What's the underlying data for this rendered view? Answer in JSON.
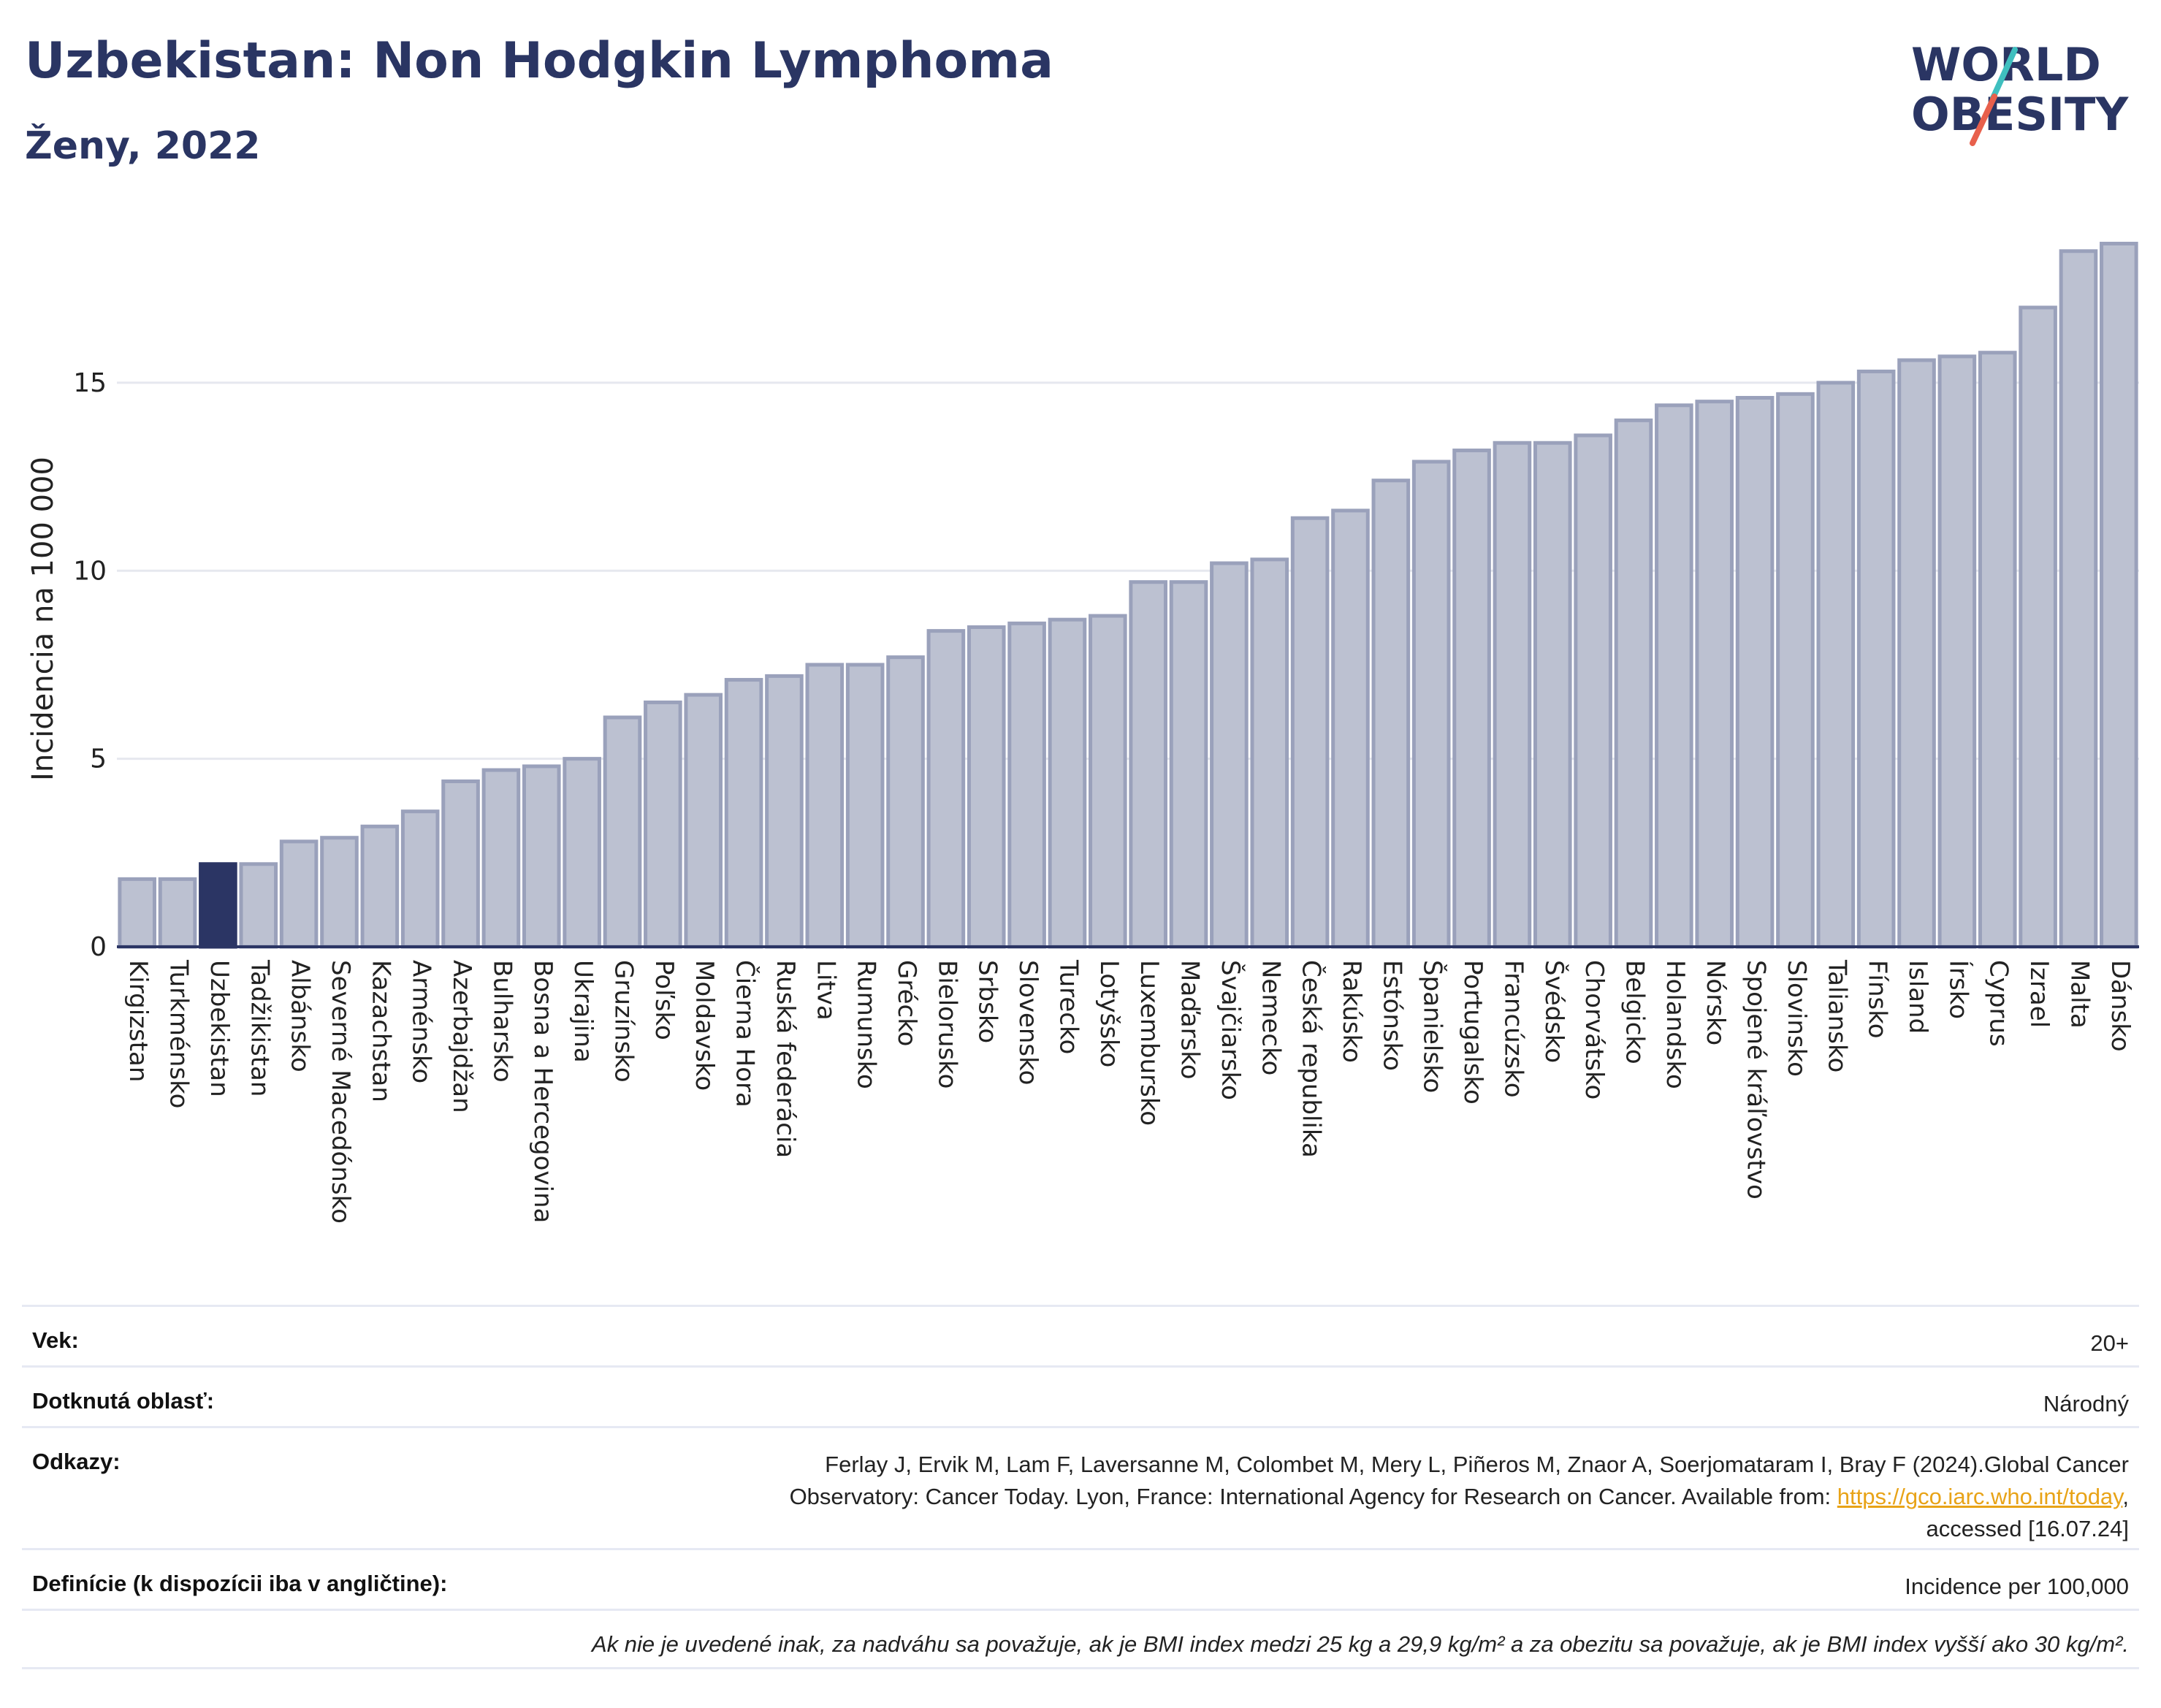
{
  "header": {
    "title": "Uzbekistan: Non Hodgkin Lymphoma",
    "subtitle": "Ženy, 2022"
  },
  "logo": {
    "line1": "WORLD",
    "line2": "OBESITY",
    "colors": {
      "text": "#2a3563",
      "slash_teal": "#3fbfbf",
      "slash_red": "#e8604c"
    }
  },
  "chart_data": {
    "type": "bar",
    "ylabel": "Incidencia na 100 000",
    "ylim": [
      0,
      19
    ],
    "yticks": [
      0,
      5,
      10,
      15
    ],
    "grid": true,
    "highlight": "Uzbekistan",
    "colors": {
      "bar": "#bcc1d1",
      "bar_edge": "#9aa1bb",
      "highlight": "#2b3564",
      "grid": "#e6e8ef"
    },
    "categories": [
      "Kirgizstan",
      "Turkménsko",
      "Uzbekistan",
      "Tadžikistan",
      "Albánsko",
      "Severné Macedónsko",
      "Kazachstan",
      "Arménsko",
      "Azerbajdžan",
      "Bulharsko",
      "Bosna a Hercegovina",
      "Ukrajina",
      "Gruzínsko",
      "Poľsko",
      "Moldavsko",
      "Čierna Hora",
      "Ruská federácia",
      "Litva",
      "Rumunsko",
      "Grécko",
      "Bielorusko",
      "Srbsko",
      "Slovensko",
      "Turecko",
      "Lotyšsko",
      "Luxembursko",
      "Maďarsko",
      "Švajčiarsko",
      "Nemecko",
      "Česká republika",
      "Rakúsko",
      "Estónsko",
      "Španielsko",
      "Portugalsko",
      "Francúzsko",
      "Švédsko",
      "Chorvátsko",
      "Belgicko",
      "Holandsko",
      "Nórsko",
      "Spojené kráľovstvo",
      "Slovinsko",
      "Taliansko",
      "Fínsko",
      "Island",
      "Írsko",
      "Cyprus",
      "Izrael",
      "Malta",
      "Dánsko"
    ],
    "values": [
      1.8,
      1.8,
      2.2,
      2.2,
      2.8,
      2.9,
      3.2,
      3.6,
      4.4,
      4.7,
      4.8,
      5.0,
      6.1,
      6.5,
      6.7,
      7.1,
      7.2,
      7.5,
      7.5,
      7.7,
      8.4,
      8.5,
      8.6,
      8.7,
      8.8,
      9.7,
      9.7,
      10.2,
      10.3,
      11.4,
      11.6,
      12.4,
      12.9,
      13.2,
      13.4,
      13.4,
      13.6,
      14.0,
      14.4,
      14.5,
      14.6,
      14.7,
      15.0,
      15.3,
      15.6,
      15.7,
      15.8,
      17.0,
      18.5,
      18.7
    ]
  },
  "info": {
    "age_label": "Vek:",
    "age_value": "20+",
    "area_label": "Dotknutá oblasť:",
    "area_value": "Národný",
    "refs_label": "Odkazy:",
    "refs_text1": "Ferlay J, Ervik M, Lam F, Laversanne M, Colombet M, Mery L, Piñeros M, Znaor A, Soerjomataram I, Bray F (2024).Global Cancer",
    "refs_text2": "Observatory: Cancer Today. Lyon, France: International Agency for Research on Cancer. Available from: ",
    "refs_link": "https://gco.iarc.who.int/today",
    "refs_text3": ",",
    "refs_text4": "accessed [16.07.24]",
    "def_label": "Definície (k dispozícii iba v angličtine):",
    "def_value": "Incidence per 100,000",
    "note": "Ak nie je uvedené inak, za nadváhu sa považuje, ak je BMI index medzi 25 kg a 29,9 kg/m² a za obezitu sa považuje, ak je BMI index vyšší ako 30 kg/m²."
  }
}
